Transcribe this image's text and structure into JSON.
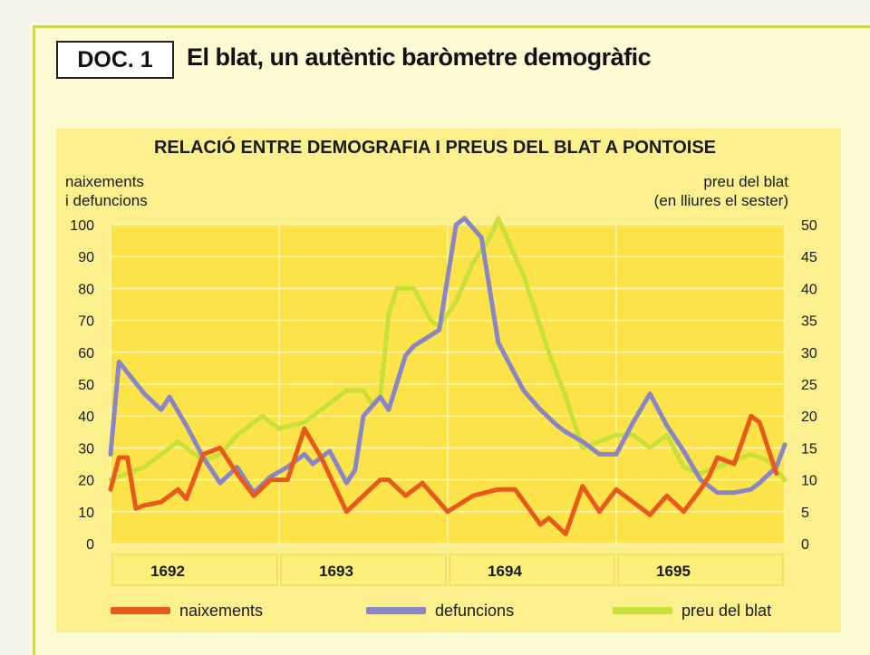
{
  "document": {
    "tag": "DOC. 1",
    "title": "El blat, un autèntic baròmetre demogràfic"
  },
  "colors": {
    "naixements": "#e85a1c",
    "defuncions": "#8a86c6",
    "preu": "#c9e03a",
    "plot_bg": "#fce34a",
    "year_band": "#fdf07a"
  },
  "chart_data": {
    "type": "line",
    "title": "RELACIÓ ENTRE DEMOGRAFIA I PREUS DEL BLAT A PONTOISE",
    "ylabel_left": [
      "naixements",
      "i defuncions"
    ],
    "ylabel_right": [
      "preu del blat",
      "(en lliures el sester)"
    ],
    "ylim_left": [
      0,
      100
    ],
    "ylim_right": [
      0,
      50
    ],
    "yticks_left": [
      "100",
      "90",
      "80",
      "70",
      "60",
      "50",
      "40",
      "30",
      "20",
      "10",
      "0"
    ],
    "yticks_right": [
      "50",
      "45",
      "40",
      "35",
      "30",
      "25",
      "20",
      "15",
      "10",
      "5",
      "0"
    ],
    "years": [
      "1692",
      "1693",
      "1694",
      "1695"
    ],
    "xlim": [
      1692,
      1696
    ],
    "grid": true,
    "legend_position": "bottom",
    "series": [
      {
        "name": "naixements",
        "axis": "left",
        "x": [
          1692.0,
          1692.05,
          1692.1,
          1692.15,
          1692.2,
          1692.3,
          1692.4,
          1692.45,
          1692.5,
          1692.55,
          1692.65,
          1692.75,
          1692.85,
          1692.95,
          1693.05,
          1693.15,
          1693.25,
          1693.4,
          1693.5,
          1693.6,
          1693.65,
          1693.75,
          1693.85,
          1694.0,
          1694.15,
          1694.3,
          1694.4,
          1694.55,
          1694.6,
          1694.7,
          1694.8,
          1694.9,
          1695.0,
          1695.1,
          1695.2,
          1695.3,
          1695.4,
          1695.5,
          1695.55,
          1695.6,
          1695.7,
          1695.8,
          1695.85,
          1695.95
        ],
        "values": [
          17,
          27,
          27,
          11,
          12,
          13,
          17,
          14,
          21,
          28,
          30,
          22,
          15,
          20,
          20,
          36,
          27,
          10,
          15,
          20,
          20,
          15,
          19,
          10,
          15,
          17,
          17,
          6,
          8,
          3,
          18,
          10,
          17,
          13,
          9,
          15,
          10,
          17,
          21,
          27,
          25,
          40,
          38,
          22
        ]
      },
      {
        "name": "defuncions",
        "axis": "left",
        "x": [
          1692.0,
          1692.05,
          1692.2,
          1692.3,
          1692.35,
          1692.45,
          1692.55,
          1692.65,
          1692.75,
          1692.85,
          1692.95,
          1693.05,
          1693.15,
          1693.2,
          1693.3,
          1693.4,
          1693.45,
          1693.5,
          1693.6,
          1693.65,
          1693.75,
          1693.8,
          1693.95,
          1694.05,
          1694.1,
          1694.2,
          1694.3,
          1694.45,
          1694.55,
          1694.65,
          1694.7,
          1694.8,
          1694.9,
          1695.0,
          1695.1,
          1695.2,
          1695.3,
          1695.4,
          1695.5,
          1695.6,
          1695.7,
          1695.8,
          1695.85,
          1695.95,
          1696.0
        ],
        "values": [
          28,
          57,
          47,
          42,
          46,
          37,
          27,
          19,
          24,
          16,
          21,
          24,
          28,
          25,
          29,
          19,
          23,
          40,
          46,
          42,
          59,
          62,
          67,
          100,
          102,
          96,
          63,
          48,
          42,
          37,
          35,
          32,
          28,
          28,
          38,
          47,
          37,
          29,
          20,
          16,
          16,
          17,
          19,
          24,
          31
        ]
      },
      {
        "name": "preu del blat",
        "axis": "right",
        "x": [
          1692.0,
          1692.2,
          1692.4,
          1692.55,
          1692.65,
          1692.75,
          1692.8,
          1692.9,
          1693.0,
          1693.15,
          1693.3,
          1693.4,
          1693.5,
          1693.55,
          1693.6,
          1693.65,
          1693.7,
          1693.8,
          1693.9,
          1693.95,
          1694.05,
          1694.15,
          1694.25,
          1694.3,
          1694.45,
          1694.6,
          1694.7,
          1694.8,
          1694.9,
          1695.0,
          1695.1,
          1695.2,
          1695.3,
          1695.4,
          1695.5,
          1695.6,
          1695.7,
          1695.8,
          1695.9,
          1696.0
        ],
        "values": [
          10,
          12,
          16,
          13,
          14,
          17,
          18,
          20,
          18,
          19,
          22,
          24,
          24,
          22,
          23,
          36,
          40,
          40,
          35,
          34,
          38,
          44,
          48,
          51,
          42,
          30,
          23,
          15,
          16,
          17,
          17,
          15,
          17,
          12,
          11,
          12,
          13,
          14,
          13,
          10
        ]
      }
    ]
  }
}
